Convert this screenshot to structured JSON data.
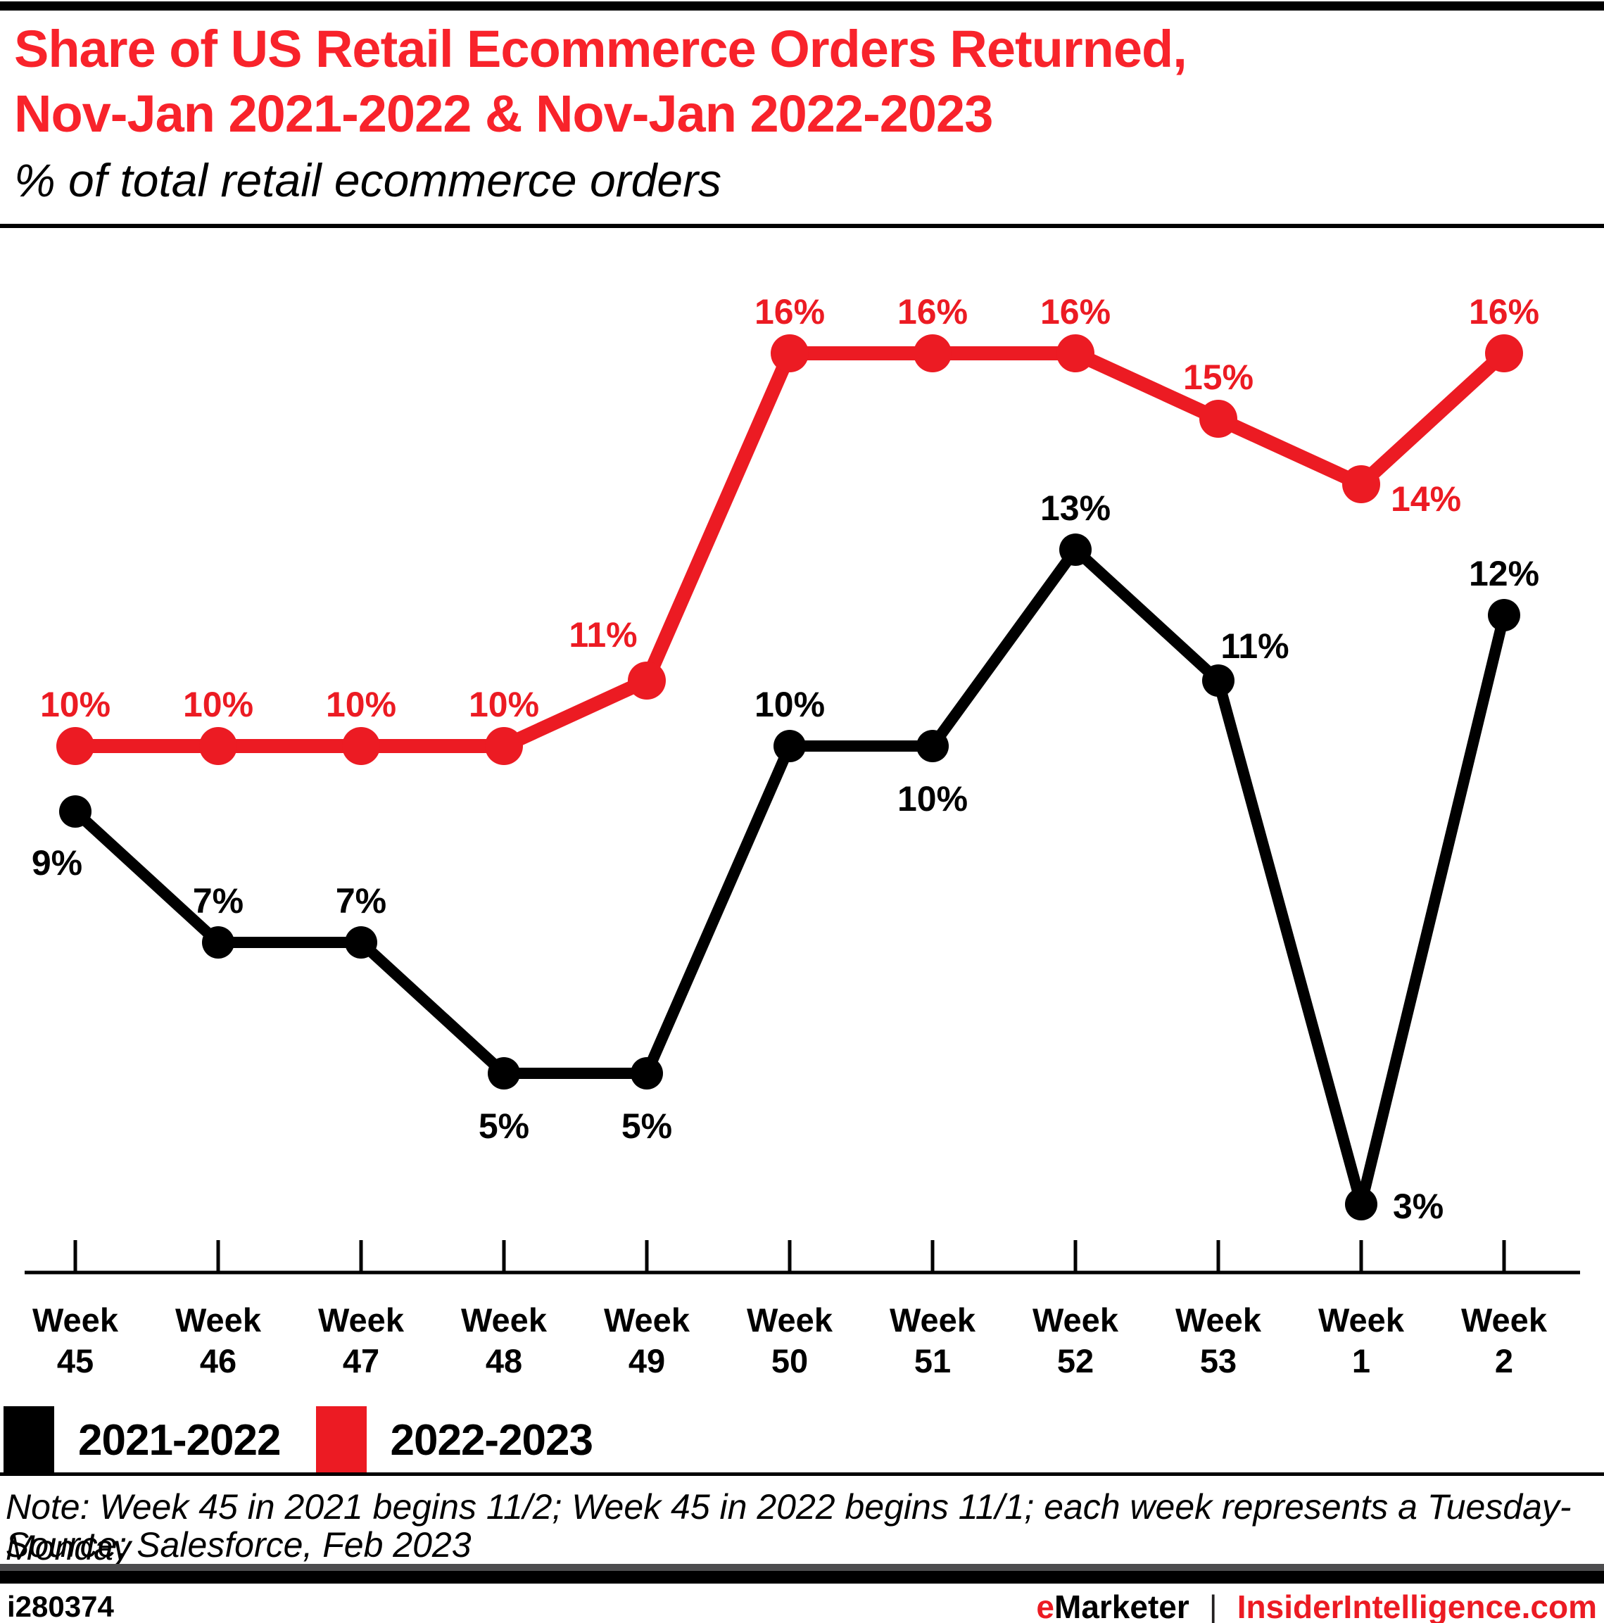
{
  "page": {
    "title_line1": "Share of US Retail Ecommerce Orders Returned,",
    "title_line2": "Nov-Jan 2021-2022 & Nov-Jan 2022-2023",
    "subtitle": "% of total retail ecommerce orders",
    "note": "Note: Week 45 in 2021 begins 11/2; Week 45 in 2022 begins 11/1; each week represents a Tuesday-Monday",
    "source": "Source: Salesforce, Feb 2023",
    "footer": {
      "chart_id": "i280374",
      "brand_e": "e",
      "brand_rest": "Marketer",
      "separator": "|",
      "site": "InsiderIntelligence.com"
    },
    "colors": {
      "title_red": "#F8232B",
      "accent_red": "#EC1B23",
      "black": "#000000",
      "bottom_bar_gray": "#4D4D4F"
    }
  },
  "chart_data": {
    "type": "line",
    "title": "Share of US Retail Ecommerce Orders Returned, Nov-Jan 2021-2022 & Nov-Jan 2022-2023",
    "subtitle": "% of total retail ecommerce orders",
    "unit": "%",
    "categories": [
      "Week 45",
      "Week 46",
      "Week 47",
      "Week 48",
      "Week 49",
      "Week 50",
      "Week 51",
      "Week 52",
      "Week 53",
      "Week 1",
      "Week 2"
    ],
    "series": [
      {
        "name": "2021-2022",
        "color": "#000000",
        "values": [
          9,
          7,
          7,
          5,
          5,
          10,
          10,
          13,
          11,
          3,
          12
        ],
        "label_placements": [
          "below-left",
          "above",
          "above",
          "below",
          "below",
          "above",
          "below",
          "above",
          "above-right",
          "right",
          "above"
        ]
      },
      {
        "name": "2022-2023",
        "color": "#EC1B23",
        "values": [
          10,
          10,
          10,
          10,
          11,
          16,
          16,
          16,
          15,
          14,
          16
        ],
        "label_placements": [
          "above",
          "above",
          "above",
          "above",
          "above-left",
          "above",
          "above",
          "above",
          "above",
          "right-below",
          "above"
        ]
      }
    ],
    "ylim": [
      2,
      18
    ],
    "xlabel": "",
    "ylabel": "% of total retail ecommerce orders",
    "grid": false,
    "legend_position": "bottom-left",
    "data_labels": true
  }
}
